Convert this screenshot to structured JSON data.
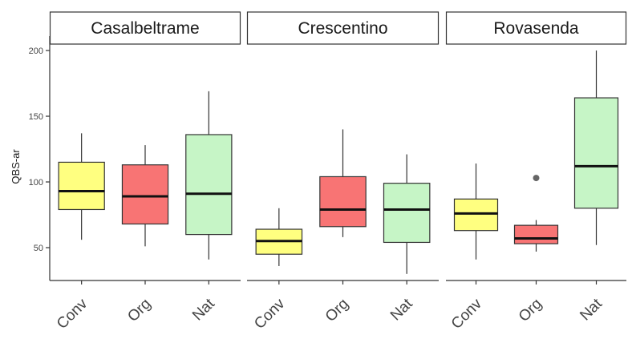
{
  "chart_data": {
    "type": "boxplot",
    "ylabel": "QBS-ar",
    "yticks": [
      50,
      100,
      150,
      200
    ],
    "ylim": [
      25,
      211
    ],
    "categories": [
      "Conv",
      "Org",
      "Nat"
    ],
    "colors": {
      "Conv": "#ffff80",
      "Org": "#f87474",
      "Nat": "#c6f5c6"
    },
    "grid": false,
    "legend": "none",
    "panels": [
      {
        "name": "Casalbeltrame",
        "boxes": [
          {
            "category": "Conv",
            "min": 56,
            "q1": 79,
            "median": 93,
            "q3": 115,
            "max": 137,
            "outliers": []
          },
          {
            "category": "Org",
            "min": 51,
            "q1": 68,
            "median": 89,
            "q3": 113,
            "max": 128,
            "outliers": []
          },
          {
            "category": "Nat",
            "min": 41,
            "q1": 60,
            "median": 91,
            "q3": 136,
            "max": 169,
            "outliers": []
          }
        ]
      },
      {
        "name": "Crescentino",
        "boxes": [
          {
            "category": "Conv",
            "min": 36,
            "q1": 45,
            "median": 55,
            "q3": 64,
            "max": 80,
            "outliers": []
          },
          {
            "category": "Org",
            "min": 58,
            "q1": 66,
            "median": 79,
            "q3": 104,
            "max": 140,
            "outliers": []
          },
          {
            "category": "Nat",
            "min": 30,
            "q1": 54,
            "median": 79,
            "q3": 99,
            "max": 121,
            "outliers": []
          }
        ]
      },
      {
        "name": "Rovasenda",
        "boxes": [
          {
            "category": "Conv",
            "min": 41,
            "q1": 63,
            "median": 76,
            "q3": 87,
            "max": 114,
            "outliers": []
          },
          {
            "category": "Org",
            "min": 47,
            "q1": 53,
            "median": 57,
            "q3": 67,
            "max": 71,
            "outliers": [
              103
            ]
          },
          {
            "category": "Nat",
            "min": 52,
            "q1": 80,
            "median": 112,
            "q3": 164,
            "max": 200,
            "outliers": []
          }
        ]
      }
    ]
  }
}
